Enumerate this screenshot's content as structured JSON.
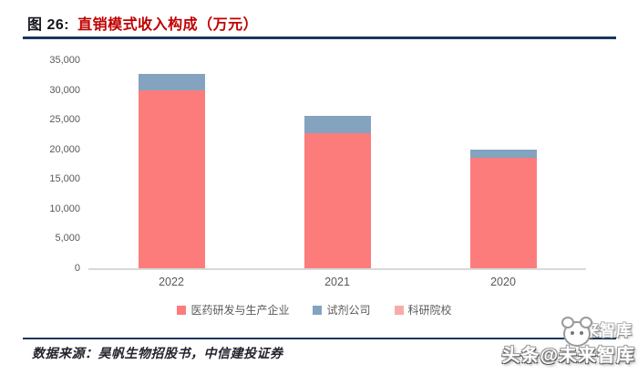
{
  "header": {
    "fig_label": "图 26:",
    "title": "直销模式收入构成（万元）"
  },
  "source": {
    "text": "数据来源：昊帆生物招股书，中信建投证券"
  },
  "watermark": {
    "back_text": "未来智库",
    "front_text": "头条@未来智库",
    "logo": "toutiao-panda-logo-icon"
  },
  "colors": {
    "navy": "#17375E",
    "title_red": "#C00000",
    "fig_label_color": "#14141c",
    "axis_text_gray": "#595959",
    "axis_line_gray": "#D9D9D9"
  },
  "chart_data": {
    "type": "bar",
    "stacked": true,
    "title": "直销模式收入构成（万元）",
    "categories": [
      "2022",
      "2021",
      "2020"
    ],
    "series": [
      {
        "name": "医药研发与生产企业",
        "color": "#FC7C7C",
        "values": [
          30000,
          22700,
          18500
        ]
      },
      {
        "name": "试剂公司",
        "color": "#84A3BE",
        "values": [
          2700,
          3000,
          1400
        ]
      },
      {
        "name": "科研院校",
        "color": "#F8ACA8",
        "values": [
          0,
          0,
          0
        ]
      }
    ],
    "xlabel": "",
    "ylabel": "",
    "ylim": [
      0,
      35000
    ],
    "ytick_step": 5000,
    "ytick_labels": [
      "0",
      "5,000",
      "10,000",
      "15,000",
      "20,000",
      "25,000",
      "30,000",
      "35,000"
    ],
    "grid": false,
    "legend_position": "bottom"
  }
}
